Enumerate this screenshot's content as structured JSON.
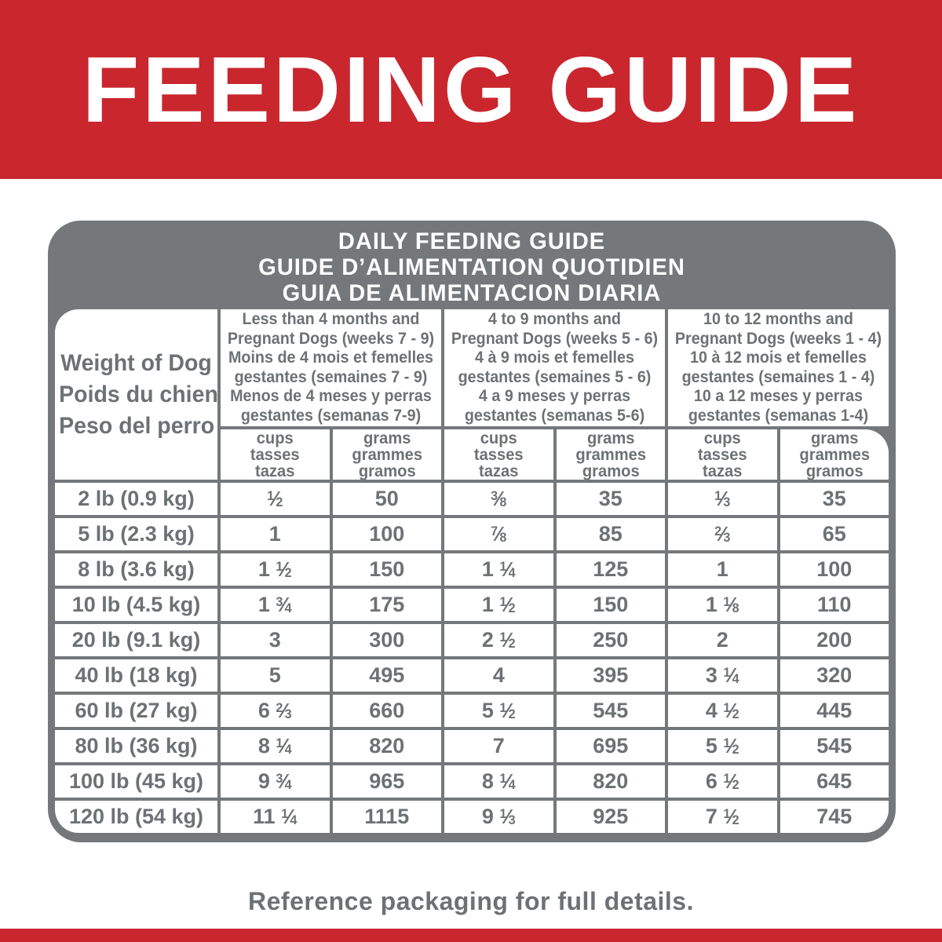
{
  "banner": {
    "title": "FEEDING GUIDE"
  },
  "table": {
    "title_lines": [
      "DAILY FEEDING GUIDE",
      "GUIDE D’ALIMENTATION QUOTIDIEN",
      "GUIA DE ALIMENTACION DIARIA"
    ],
    "weight_header_lines": [
      "Weight of Dog",
      "Poids du chien",
      "Peso del perro"
    ],
    "groups": [
      {
        "lines": [
          "Less than 4 months and",
          "Pregnant Dogs (weeks 7 - 9)",
          "Moins de 4 mois et femelles",
          "gestantes (semaines 7 - 9)",
          "Menos de 4 meses y perras",
          "gestantes (semanas 7-9)"
        ]
      },
      {
        "lines": [
          "4 to 9 months and",
          "Pregnant Dogs (weeks 5 - 6)",
          "4 à 9 mois et femelles",
          "gestantes (semaines 5 - 6)",
          "4 a 9 meses y perras",
          "gestantes (semanas 5-6)"
        ]
      },
      {
        "lines": [
          "10 to 12 months and",
          "Pregnant Dogs (weeks 1 - 4)",
          "10 à 12 mois et femelles",
          "gestantes (semaines 1 - 4)",
          "10 a 12 meses y perras",
          "gestantes (semanas 1-4)"
        ]
      }
    ],
    "unit_headers": {
      "cups": [
        "cups",
        "tasses",
        "tazas"
      ],
      "grams": [
        "grams",
        "grammes",
        "gramos"
      ]
    },
    "rows": [
      {
        "weight": "2 lb (0.9 kg)",
        "values": [
          "1/2",
          "50",
          "3/8",
          "35",
          "1/3",
          "35"
        ]
      },
      {
        "weight": "5 lb (2.3 kg)",
        "values": [
          "1",
          "100",
          "7/8",
          "85",
          "2/3",
          "65"
        ]
      },
      {
        "weight": "8 lb (3.6 kg)",
        "values": [
          "1 1/2",
          "150",
          "1 1/4",
          "125",
          "1",
          "100"
        ]
      },
      {
        "weight": "10 lb (4.5 kg)",
        "values": [
          "1 3/4",
          "175",
          "1 1/2",
          "150",
          "1 1/8",
          "110"
        ]
      },
      {
        "weight": "20 lb (9.1 kg)",
        "values": [
          "3",
          "300",
          "2 1/2",
          "250",
          "2",
          "200"
        ]
      },
      {
        "weight": "40 lb (18 kg)",
        "values": [
          "5",
          "495",
          "4",
          "395",
          "3 1/4",
          "320"
        ]
      },
      {
        "weight": "60 lb (27 kg)",
        "values": [
          "6 2/3",
          "660",
          "5 1/2",
          "545",
          "4 1/2",
          "445"
        ]
      },
      {
        "weight": "80 lb (36 kg)",
        "values": [
          "8 1/4",
          "820",
          "7",
          "695",
          "5 1/2",
          "545"
        ]
      },
      {
        "weight": "100 lb (45 kg)",
        "values": [
          "9 3/4",
          "965",
          "8 1/4",
          "820",
          "6 1/2",
          "645"
        ]
      },
      {
        "weight": "120 lb (54 kg)",
        "values": [
          "11 1/4",
          "1115",
          "9 1/3",
          "925",
          "7 1/2",
          "745"
        ]
      }
    ]
  },
  "footer": {
    "note": "Reference packaging for full details."
  },
  "colors": {
    "brand_red": "#c9262e",
    "frame_gray": "#75787b",
    "text_gray": "#6e7174",
    "cell_white": "#ffffff"
  }
}
